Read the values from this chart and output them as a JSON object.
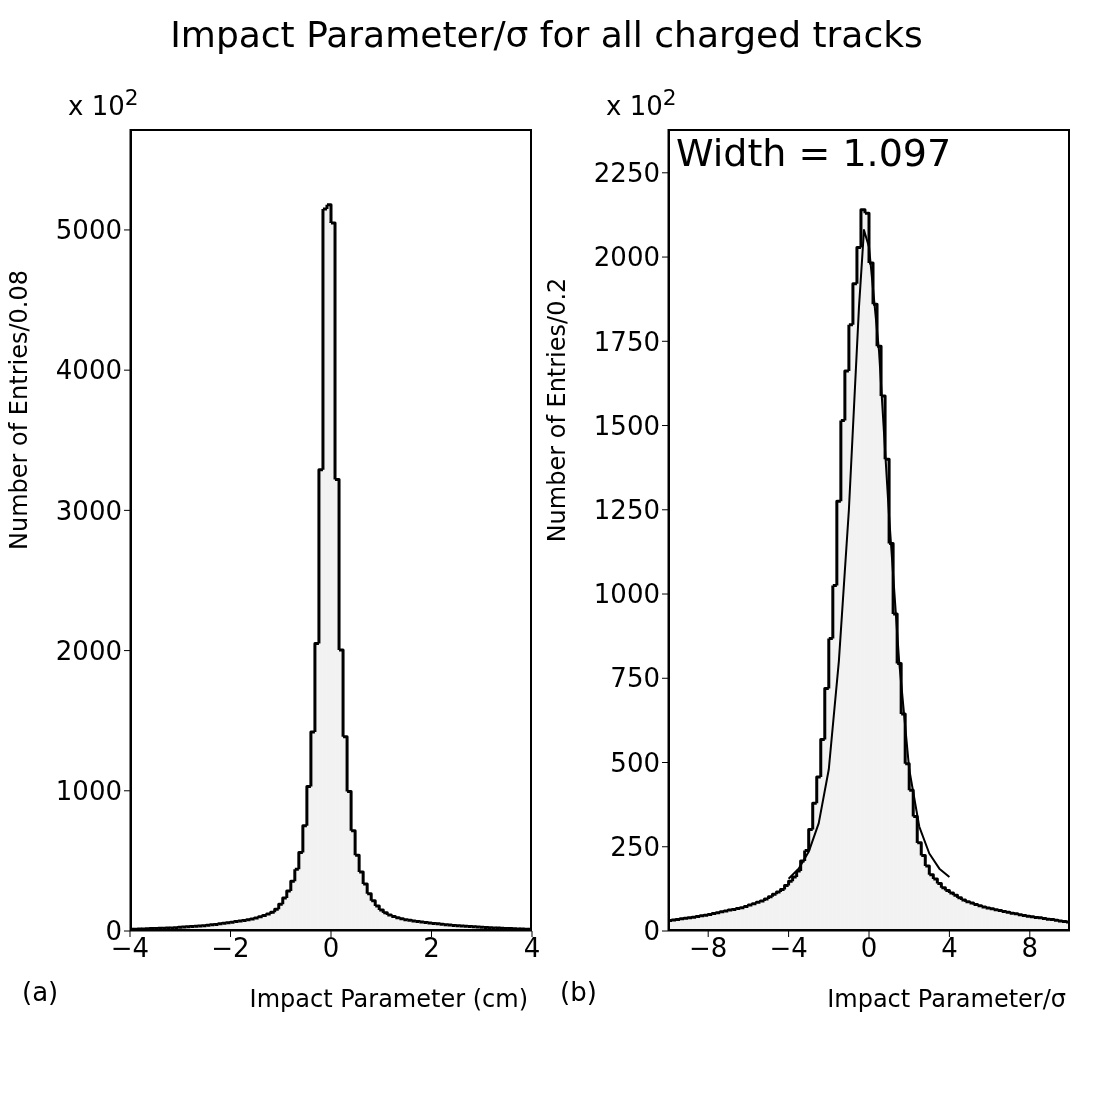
{
  "chart_data": [
    {
      "type": "histogram",
      "title": "Impact Parameter/σ for all charged tracks",
      "xlabel": "Impact Parameter (cm)",
      "ylabel": "Number of Entries/0.08",
      "annotations": [
        "x 10$^{2}$",
        "(a)"
      ],
      "color": "#000000",
      "xlim": [
        -4,
        4
      ],
      "xticks": [
        -4,
        -2,
        0,
        2,
        4
      ],
      "ylim": [
        0,
        5720
      ],
      "yticks": [
        0,
        1000,
        2000,
        3000,
        4000,
        5000
      ],
      "bins": [
        -4,
        -3.92,
        -3.84,
        -3.76,
        -3.68,
        -3.6,
        -3.52,
        -3.44,
        -3.36,
        -3.28,
        -3.2,
        -3.12,
        -3.04,
        -2.96,
        -2.88,
        -2.8,
        -2.72,
        -2.64,
        -2.56,
        -2.48,
        -2.4,
        -2.32,
        -2.24,
        -2.16,
        -2.08,
        -2,
        -1.92,
        -1.84,
        -1.76,
        -1.68,
        -1.6,
        -1.52,
        -1.44,
        -1.36,
        -1.28,
        -1.2,
        -1.12,
        -1.04,
        -0.96,
        -0.88,
        -0.8,
        -0.72,
        -0.64,
        -0.56,
        -0.48,
        -0.4,
        -0.32,
        -0.24,
        -0.16,
        -0.08,
        0,
        0.08,
        0.16,
        0.24,
        0.32,
        0.4,
        0.48,
        0.56,
        0.64,
        0.72,
        0.8,
        0.88,
        0.96,
        1.04,
        1.12,
        1.2,
        1.28,
        1.36,
        1.44,
        1.52,
        1.6,
        1.68,
        1.76,
        1.84,
        1.92,
        2,
        2.08,
        2.16,
        2.24,
        2.32,
        2.4,
        2.48,
        2.56,
        2.64,
        2.72,
        2.8,
        2.88,
        2.96,
        3.04,
        3.12,
        3.2,
        3.28,
        3.36,
        3.44,
        3.52,
        3.6,
        3.68,
        3.76,
        3.84,
        3.92,
        4
      ],
      "values": [
        12,
        13,
        14,
        15,
        16,
        17,
        18,
        19,
        20,
        21,
        22,
        24,
        26,
        28,
        30,
        32,
        34,
        36,
        38,
        41,
        44,
        47,
        51,
        55,
        59,
        63,
        67,
        71,
        75,
        80,
        86,
        93,
        101,
        110,
        121,
        134,
        155,
        190,
        235,
        285,
        355,
        440,
        560,
        750,
        1030,
        1420,
        2050,
        3290,
        5150,
        5180,
        5050,
        3220,
        2005,
        1385,
        995,
        715,
        540,
        420,
        335,
        265,
        215,
        178,
        150,
        130,
        115,
        103,
        94,
        87,
        81,
        76,
        72,
        68,
        64,
        60,
        57,
        54,
        51,
        48,
        45,
        42,
        40,
        38,
        36,
        34,
        32,
        30,
        28,
        26,
        25,
        23,
        22,
        21,
        19,
        18,
        17,
        16,
        15,
        14,
        13,
        12
      ]
    },
    {
      "type": "histogram",
      "xlabel": "Impact Parameter/σ",
      "ylabel": "Number of Entries/0.2",
      "annotations": [
        "x 10$^{2}$",
        "(b)",
        "Width = 1.097"
      ],
      "xlim": [
        -10,
        10
      ],
      "xticks": [
        -8,
        -4,
        0,
        4,
        8
      ],
      "ylim": [
        0,
        2380
      ],
      "yticks": [
        0,
        250,
        500,
        750,
        1000,
        1250,
        1500,
        1750,
        2000,
        2250
      ],
      "bins": [
        -10,
        -9.8,
        -9.6,
        -9.4,
        -9.2,
        -9,
        -8.8,
        -8.6,
        -8.4,
        -8.2,
        -8,
        -7.8,
        -7.6,
        -7.4,
        -7.2,
        -7,
        -6.8,
        -6.6,
        -6.4,
        -6.2,
        -6,
        -5.8,
        -5.6,
        -5.4,
        -5.2,
        -5,
        -4.8,
        -4.6,
        -4.4,
        -4.2,
        -4,
        -3.8,
        -3.6,
        -3.4,
        -3.2,
        -3,
        -2.8,
        -2.6,
        -2.4,
        -2.2,
        -2,
        -1.8,
        -1.6,
        -1.4,
        -1.2,
        -1,
        -0.8,
        -0.6,
        -0.4,
        -0.2,
        0,
        0.2,
        0.4,
        0.6,
        0.8,
        1,
        1.2,
        1.4,
        1.6,
        1.8,
        2,
        2.2,
        2.4,
        2.6,
        2.8,
        3,
        3.2,
        3.4,
        3.6,
        3.8,
        4,
        4.2,
        4.4,
        4.6,
        4.8,
        5,
        5.2,
        5.4,
        5.6,
        5.8,
        6,
        6.2,
        6.4,
        6.6,
        6.8,
        7,
        7.2,
        7.4,
        7.6,
        7.8,
        8,
        8.2,
        8.4,
        8.6,
        8.8,
        9,
        9.2,
        9.4,
        9.6,
        9.8,
        10
      ],
      "series": [
        {
          "type": "histogram",
          "color": "#000000",
          "values": [
            31,
            33,
            34,
            36,
            38,
            39,
            41,
            43,
            45,
            47,
            49,
            52,
            54,
            57,
            59,
            62,
            64,
            67,
            69,
            73,
            77,
            81,
            85,
            89,
            95,
            102,
            109,
            116,
            123,
            135,
            148,
            160,
            178,
            208,
            239,
            301,
            379,
            457,
            568,
            720,
            868,
            1025,
            1275,
            1515,
            1662,
            1799,
            1921,
            2028,
            2140,
            2130,
            1982,
            1860,
            1735,
            1588,
            1400,
            1150,
            941,
            794,
            644,
            496,
            418,
            340,
            262,
            224,
            193,
            167,
            154,
            141,
            128,
            120,
            113,
            106,
            99,
            92,
            87,
            83,
            79,
            75,
            71,
            68,
            66,
            63,
            61,
            58,
            56,
            53,
            51,
            48,
            46,
            44,
            42,
            40,
            39,
            37,
            35,
            34,
            32,
            30,
            28,
            27
          ]
        },
        {
          "type": "line",
          "color": "#000000",
          "x": [
            -4,
            -3.5,
            -3,
            -2.5,
            -2,
            -1.5,
            -1,
            -0.5,
            -0.25,
            0,
            0.5,
            1,
            1.5,
            2,
            2.5,
            3,
            3.5,
            4
          ],
          "values": [
            155,
            185,
            235,
            320,
            480,
            800,
            1250,
            1850,
            2080,
            2030,
            1720,
            1230,
            800,
            480,
            310,
            230,
            185,
            160
          ]
        }
      ]
    }
  ]
}
